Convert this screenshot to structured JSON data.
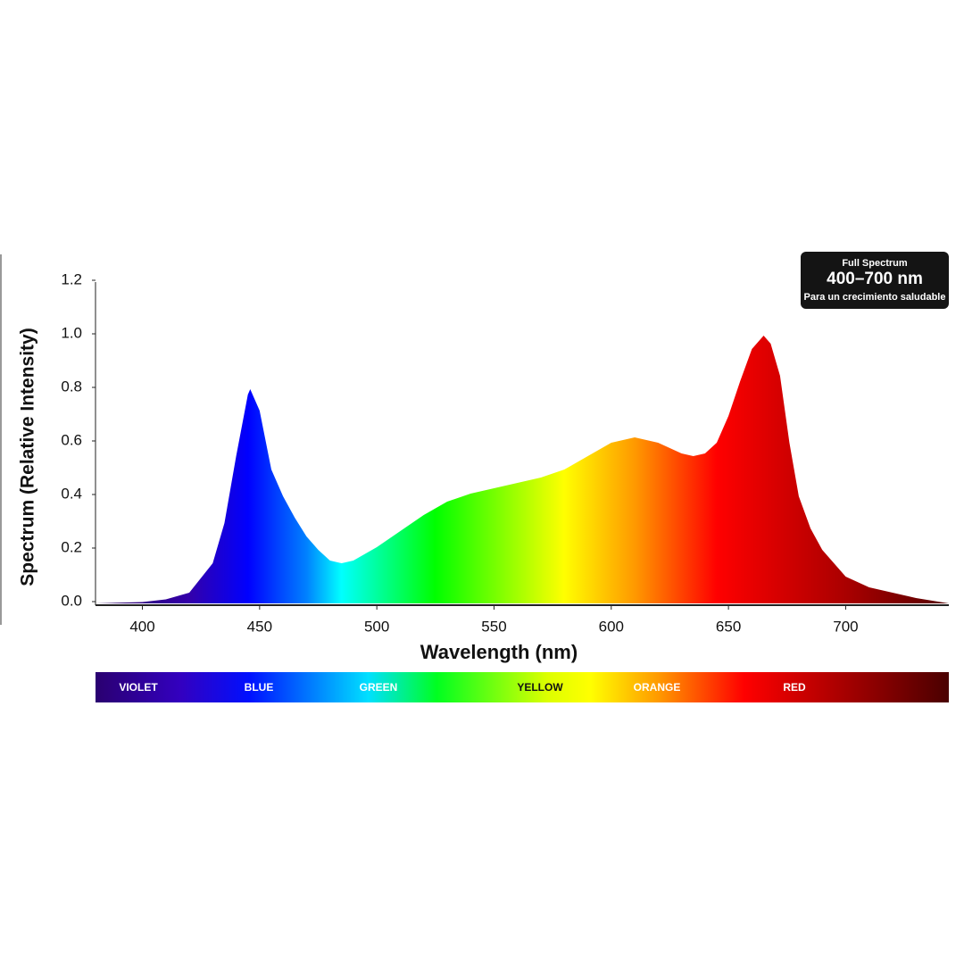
{
  "chart_data": {
    "type": "area",
    "x": [
      380,
      400,
      410,
      420,
      430,
      435,
      440,
      445,
      446,
      450,
      455,
      460,
      465,
      470,
      475,
      480,
      485,
      490,
      500,
      510,
      520,
      530,
      540,
      550,
      560,
      570,
      580,
      590,
      600,
      610,
      620,
      630,
      635,
      640,
      645,
      650,
      655,
      660,
      665,
      668,
      672,
      676,
      680,
      685,
      690,
      700,
      710,
      720,
      730,
      744
    ],
    "values": [
      0,
      0.005,
      0.015,
      0.04,
      0.15,
      0.3,
      0.55,
      0.78,
      0.8,
      0.72,
      0.5,
      0.4,
      0.32,
      0.25,
      0.2,
      0.16,
      0.15,
      0.16,
      0.21,
      0.27,
      0.33,
      0.38,
      0.41,
      0.43,
      0.45,
      0.47,
      0.5,
      0.55,
      0.6,
      0.62,
      0.6,
      0.56,
      0.55,
      0.56,
      0.6,
      0.7,
      0.83,
      0.95,
      1.0,
      0.97,
      0.85,
      0.6,
      0.4,
      0.28,
      0.2,
      0.1,
      0.06,
      0.04,
      0.02,
      0
    ],
    "xlim": [
      380,
      744
    ],
    "ylim": [
      0,
      1.2
    ],
    "xticks": [
      400,
      450,
      500,
      550,
      600,
      650,
      700
    ],
    "yticks": [
      {
        "value": 0,
        "label": "0.0"
      },
      0.2,
      0.4,
      0.6,
      0.8,
      {
        "value": 1,
        "label": "1.0"
      },
      1.2
    ],
    "x_label": "Wavelength (nm)",
    "y_label": "Spectrum (Relative Intensity)"
  },
  "badge": {
    "title": "Full Spectrum",
    "range": "400–700 nm",
    "subtitle": "Para un crecimiento saludable"
  },
  "color_band": [
    "VIOLET",
    "BLUE",
    "GREEN",
    "YELLOW",
    "ORANGE",
    "RED"
  ]
}
